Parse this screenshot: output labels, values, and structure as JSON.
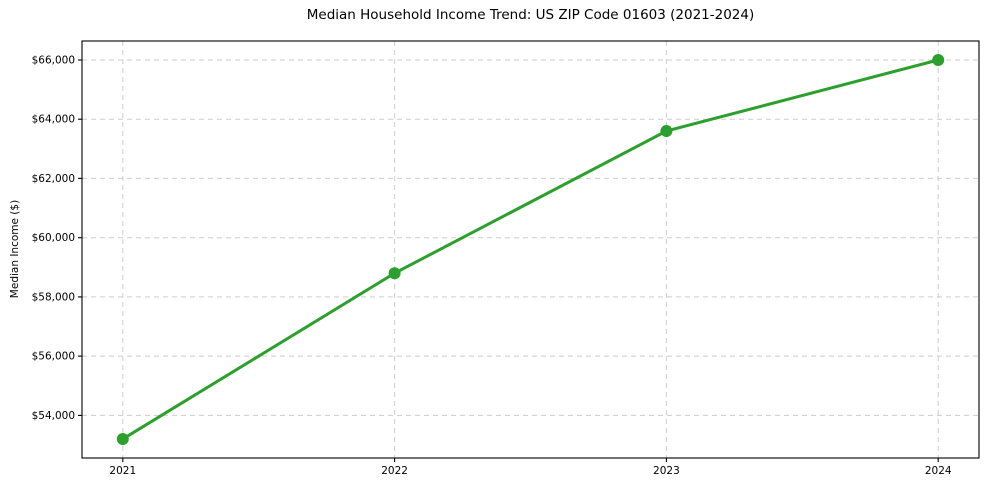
{
  "figure": {
    "background": "#ffffff"
  },
  "chart_data": {
    "type": "line",
    "title": "Median Household Income Trend: US ZIP Code 01603 (2021-2024)",
    "xlabel": "",
    "ylabel": "Median Income ($)",
    "x": [
      2021,
      2022,
      2023,
      2024
    ],
    "series": [
      {
        "name": "median_household_income",
        "values": [
          53200,
          58800,
          63600,
          66000
        ],
        "color": "#2ca02c",
        "marker": "circle",
        "line_width": 3,
        "marker_size": 6
      }
    ],
    "xtick_labels": [
      "2021",
      "2022",
      "2023",
      "2024"
    ],
    "ytick_values": [
      54000,
      56000,
      58000,
      60000,
      62000,
      64000,
      66000
    ],
    "ytick_labels": [
      "$54,000",
      "$56,000",
      "$58,000",
      "$60,000",
      "$62,000",
      "$64,000",
      "$66,000"
    ],
    "xlim": [
      2020.85,
      2024.15
    ],
    "ylim": [
      52560,
      66640
    ],
    "grid": true,
    "grid_style": "dashed",
    "grid_color": "#cdcdcd",
    "grid_dash": "5 4",
    "axis_color": "#000000",
    "text_color": "#000000",
    "legend_position": "none"
  }
}
